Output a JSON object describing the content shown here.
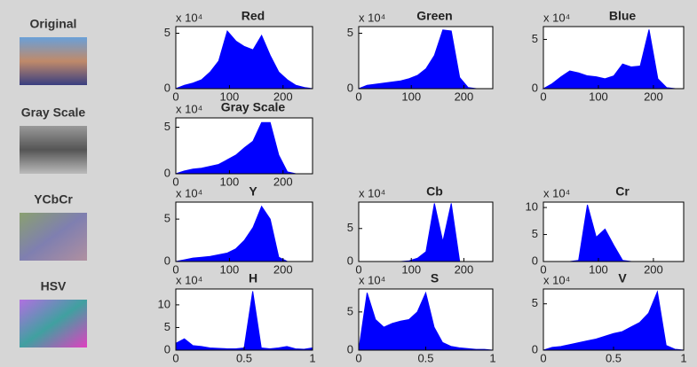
{
  "row_labels": [
    "Original",
    "Gray Scale",
    "YCbCr",
    "HSV"
  ],
  "chart_data": [
    {
      "type": "area",
      "title": "Red",
      "y_scale_label": "x 10⁴",
      "color": "#0000ff",
      "x": [
        0,
        16,
        32,
        48,
        64,
        80,
        96,
        112,
        128,
        144,
        160,
        176,
        192,
        208,
        224,
        240,
        255
      ],
      "values": [
        0,
        0.3,
        0.5,
        0.8,
        1.5,
        2.5,
        5.2,
        4.3,
        3.8,
        3.5,
        4.8,
        3.0,
        1.5,
        0.8,
        0.3,
        0.1,
        0
      ],
      "xlim": [
        0,
        255
      ],
      "xticks": [
        0,
        100,
        200
      ],
      "ylim": [
        0,
        5.6
      ],
      "yticks": [
        0,
        5
      ]
    },
    {
      "type": "area",
      "title": "Green",
      "y_scale_label": "x 10⁴",
      "color": "#0000ff",
      "x": [
        0,
        16,
        32,
        48,
        64,
        80,
        96,
        112,
        128,
        144,
        160,
        176,
        192,
        208,
        224,
        240,
        255
      ],
      "values": [
        0,
        0.3,
        0.4,
        0.5,
        0.6,
        0.7,
        0.9,
        1.2,
        1.8,
        3.0,
        5.3,
        5.2,
        1.0,
        0.1,
        0,
        0,
        0
      ],
      "xlim": [
        0,
        255
      ],
      "xticks": [
        0,
        100,
        200
      ],
      "ylim": [
        0,
        5.6
      ],
      "yticks": [
        0,
        5
      ]
    },
    {
      "type": "area",
      "title": "Blue",
      "y_scale_label": "x 10⁴",
      "color": "#0000ff",
      "x": [
        0,
        16,
        32,
        48,
        64,
        80,
        96,
        112,
        128,
        144,
        160,
        176,
        192,
        208,
        224,
        240,
        255
      ],
      "values": [
        0,
        0.5,
        1.2,
        1.8,
        1.6,
        1.3,
        1.2,
        1.0,
        1.3,
        2.5,
        2.2,
        2.3,
        6.0,
        1.0,
        0.1,
        0,
        0
      ],
      "xlim": [
        0,
        255
      ],
      "xticks": [
        0,
        100,
        200
      ],
      "ylim": [
        0,
        6.3
      ],
      "yticks": [
        0,
        5
      ]
    },
    {
      "type": "area",
      "title": "Gray Scale",
      "y_scale_label": "x 10⁴",
      "color": "#0000ff",
      "x": [
        0,
        16,
        32,
        48,
        64,
        80,
        96,
        112,
        128,
        144,
        160,
        176,
        192,
        208,
        224,
        240,
        255
      ],
      "values": [
        0,
        0.3,
        0.5,
        0.6,
        0.8,
        1.0,
        1.5,
        2.0,
        2.8,
        3.5,
        5.5,
        5.5,
        2.0,
        0.2,
        0,
        0,
        0
      ],
      "xlim": [
        0,
        255
      ],
      "xticks": [
        0,
        100,
        200
      ],
      "ylim": [
        0,
        6
      ],
      "yticks": [
        0,
        5
      ]
    },
    {
      "type": "area",
      "title": "Y",
      "y_scale_label": "x 10⁴",
      "color": "#0000ff",
      "x": [
        0,
        16,
        32,
        48,
        64,
        80,
        96,
        112,
        128,
        144,
        160,
        176,
        192,
        208,
        224,
        240,
        255
      ],
      "values": [
        0,
        0.2,
        0.4,
        0.5,
        0.6,
        0.8,
        1.0,
        1.5,
        2.5,
        4.0,
        6.5,
        5.0,
        0.5,
        0,
        0,
        0,
        0
      ],
      "xlim": [
        0,
        255
      ],
      "xticks": [
        0,
        100,
        200
      ],
      "ylim": [
        0,
        7
      ],
      "yticks": [
        0,
        5
      ]
    },
    {
      "type": "area",
      "title": "Cb",
      "y_scale_label": "x 10⁴",
      "color": "#0000ff",
      "x": [
        0,
        16,
        32,
        48,
        64,
        80,
        96,
        112,
        128,
        144,
        160,
        176,
        192,
        208,
        224,
        240,
        255
      ],
      "values": [
        0,
        0,
        0,
        0,
        0,
        0,
        0.1,
        0.5,
        1.5,
        8.8,
        3.0,
        8.8,
        0,
        0,
        0,
        0,
        0
      ],
      "xlim": [
        0,
        255
      ],
      "xticks": [
        0,
        100,
        200
      ],
      "ylim": [
        0,
        9
      ],
      "yticks": [
        0,
        5
      ]
    },
    {
      "type": "area",
      "title": "Cr",
      "y_scale_label": "x 10⁴",
      "color": "#0000ff",
      "x": [
        0,
        16,
        32,
        48,
        64,
        80,
        96,
        112,
        128,
        144,
        160,
        176,
        192,
        208,
        224,
        240,
        255
      ],
      "values": [
        0,
        0,
        0,
        0,
        0.2,
        10.5,
        4.5,
        6.0,
        3.0,
        0.2,
        0,
        0,
        0,
        0,
        0,
        0,
        0
      ],
      "xlim": [
        0,
        255
      ],
      "xticks": [
        0,
        100,
        200
      ],
      "ylim": [
        0,
        11
      ],
      "yticks": [
        0,
        5,
        10
      ]
    },
    {
      "type": "area",
      "title": "H",
      "y_scale_label": "x 10⁴",
      "color": "#0000ff",
      "x": [
        0,
        0.0625,
        0.125,
        0.1875,
        0.25,
        0.3125,
        0.375,
        0.4375,
        0.5,
        0.5625,
        0.625,
        0.6875,
        0.75,
        0.8125,
        0.875,
        0.9375,
        1
      ],
      "values": [
        1.5,
        2.5,
        1.0,
        0.8,
        0.5,
        0.4,
        0.3,
        0.3,
        0.5,
        13.0,
        0.5,
        0.3,
        0.5,
        0.8,
        0.3,
        0.2,
        0.5
      ],
      "xlim": [
        0,
        1
      ],
      "xticks": [
        0,
        0.5,
        1
      ],
      "ylim": [
        0,
        13.5
      ],
      "yticks": [
        0,
        5,
        10
      ]
    },
    {
      "type": "area",
      "title": "S",
      "y_scale_label": "x 10⁴",
      "color": "#0000ff",
      "x": [
        0,
        0.0625,
        0.125,
        0.1875,
        0.25,
        0.3125,
        0.375,
        0.4375,
        0.5,
        0.5625,
        0.625,
        0.6875,
        0.75,
        0.8125,
        0.875,
        0.9375,
        1
      ],
      "values": [
        0,
        7.5,
        4.0,
        3.0,
        3.5,
        3.8,
        4.0,
        5.0,
        7.5,
        3.0,
        1.0,
        0.5,
        0.3,
        0.2,
        0.1,
        0.1,
        0
      ],
      "xlim": [
        0,
        1
      ],
      "xticks": [
        0,
        0.5,
        1
      ],
      "ylim": [
        0,
        8
      ],
      "yticks": [
        0,
        5
      ]
    },
    {
      "type": "area",
      "title": "V",
      "y_scale_label": "x 10⁴",
      "color": "#0000ff",
      "x": [
        0,
        0.0625,
        0.125,
        0.1875,
        0.25,
        0.3125,
        0.375,
        0.4375,
        0.5,
        0.5625,
        0.625,
        0.6875,
        0.75,
        0.8125,
        0.875,
        0.9375,
        1
      ],
      "values": [
        0,
        0.3,
        0.4,
        0.6,
        0.8,
        1.0,
        1.2,
        1.5,
        1.8,
        2.0,
        2.5,
        3.0,
        4.0,
        6.3,
        0.5,
        0.1,
        0
      ],
      "xlim": [
        0,
        1
      ],
      "xticks": [
        0,
        0.5,
        1
      ],
      "ylim": [
        0,
        6.6
      ],
      "yticks": [
        0,
        5
      ]
    }
  ]
}
